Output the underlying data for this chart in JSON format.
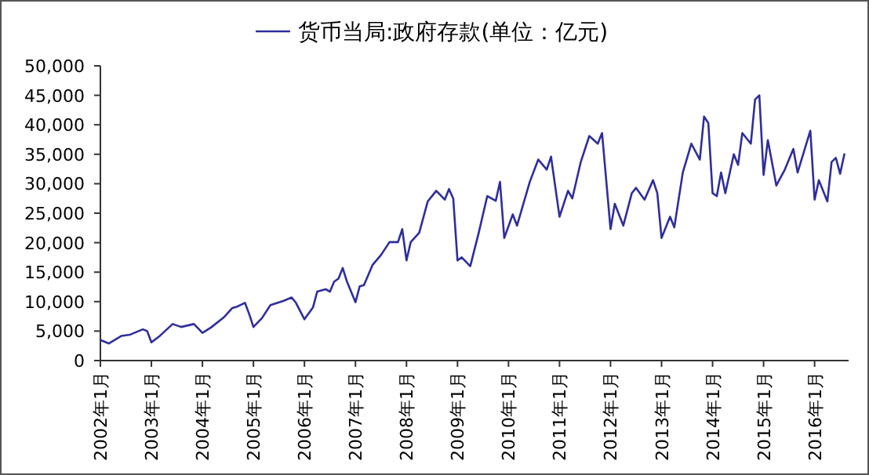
{
  "chart_data": {
    "type": "line",
    "x": [
      "2002-01",
      "2002-03",
      "2002-06",
      "2002-08",
      "2002-11",
      "2002-12",
      "2003-01",
      "2003-03",
      "2003-06",
      "2003-08",
      "2003-11",
      "2004-01",
      "2004-03",
      "2004-06",
      "2004-08",
      "2004-09",
      "2004-11",
      "2004-12",
      "2005-01",
      "2005-03",
      "2005-05",
      "2005-08",
      "2005-10",
      "2005-11",
      "2006-01",
      "2006-03",
      "2006-04",
      "2006-06",
      "2006-07",
      "2006-08",
      "2006-09",
      "2006-10",
      "2006-11",
      "2007-01",
      "2007-02",
      "2007-03",
      "2007-05",
      "2007-07",
      "2007-09",
      "2007-11",
      "2007-12",
      "2008-01",
      "2008-02",
      "2008-04",
      "2008-06",
      "2008-08",
      "2008-10",
      "2008-11",
      "2008-12",
      "2009-01",
      "2009-02",
      "2009-04",
      "2009-06",
      "2009-08",
      "2009-10",
      "2009-11",
      "2009-12",
      "2010-02",
      "2010-03",
      "2010-06",
      "2010-08",
      "2010-10",
      "2010-11",
      "2011-01",
      "2011-03",
      "2011-04",
      "2011-06",
      "2011-08",
      "2011-10",
      "2011-11",
      "2012-01",
      "2012-02",
      "2012-04",
      "2012-06",
      "2012-07",
      "2012-09",
      "2012-11",
      "2012-12",
      "2013-01",
      "2013-03",
      "2013-04",
      "2013-06",
      "2013-08",
      "2013-10",
      "2013-11",
      "2013-12",
      "2014-01",
      "2014-02",
      "2014-03",
      "2014-04",
      "2014-06",
      "2014-07",
      "2014-08",
      "2014-10",
      "2014-11",
      "2014-12",
      "2015-01",
      "2015-02",
      "2015-04",
      "2015-06",
      "2015-08",
      "2015-09",
      "2015-12",
      "2016-01",
      "2016-02",
      "2016-04",
      "2016-05",
      "2016-06",
      "2016-07",
      "2016-08"
    ],
    "series": [
      {
        "name": "货币当局:政府存款(单位：亿元)",
        "color": "#2e2e9c",
        "values": [
          3500,
          2900,
          4200,
          4400,
          5300,
          5000,
          3100,
          4200,
          6200,
          5700,
          6200,
          4700,
          5600,
          7300,
          8900,
          9100,
          9800,
          7900,
          5700,
          7200,
          9400,
          10100,
          10700,
          9800,
          7000,
          9000,
          11700,
          12100,
          11700,
          13400,
          13900,
          15700,
          13400,
          9900,
          12600,
          12800,
          16200,
          17900,
          20100,
          20100,
          22300,
          17000,
          20100,
          21700,
          27000,
          28800,
          27300,
          29100,
          27500,
          17000,
          17500,
          16000,
          21700,
          27900,
          27100,
          30300,
          20800,
          24800,
          22900,
          30300,
          34100,
          32400,
          34600,
          24400,
          28800,
          27500,
          33700,
          38100,
          36800,
          38600,
          22300,
          26600,
          22900,
          28400,
          29300,
          27300,
          30600,
          28400,
          20800,
          24400,
          22600,
          31900,
          36800,
          34100,
          41400,
          40300,
          28400,
          27900,
          31900,
          28400,
          35000,
          33200,
          38600,
          36800,
          44300,
          45000,
          31500,
          37400,
          29700,
          32400,
          35900,
          31900,
          39000,
          27300,
          30600,
          27000,
          33700,
          34400,
          31700,
          35000
        ]
      }
    ],
    "xlim": [
      "2002-01",
      "2016-09"
    ],
    "xticks": [
      {
        "value": "2002-01",
        "label": "2002年1月"
      },
      {
        "value": "2003-01",
        "label": "2003年1月"
      },
      {
        "value": "2004-01",
        "label": "2004年1月"
      },
      {
        "value": "2005-01",
        "label": "2005年1月"
      },
      {
        "value": "2006-01",
        "label": "2006年1月"
      },
      {
        "value": "2007-01",
        "label": "2007年1月"
      },
      {
        "value": "2008-01",
        "label": "2008年1月"
      },
      {
        "value": "2009-01",
        "label": "2009年1月"
      },
      {
        "value": "2010-01",
        "label": "2010年1月"
      },
      {
        "value": "2011-01",
        "label": "2011年1月"
      },
      {
        "value": "2012-01",
        "label": "2012年1月"
      },
      {
        "value": "2013-01",
        "label": "2013年1月"
      },
      {
        "value": "2014-01",
        "label": "2014年1月"
      },
      {
        "value": "2015-01",
        "label": "2015年1月"
      },
      {
        "value": "2016-01",
        "label": "2016年1月"
      }
    ],
    "ylim": [
      0,
      50000
    ],
    "yticks": [
      0,
      {
        "value": 5000,
        "label": "5,000"
      },
      {
        "value": 10000,
        "label": "10,000"
      },
      {
        "value": 15000,
        "label": "15,000"
      },
      {
        "value": 20000,
        "label": "20,000"
      },
      {
        "value": 25000,
        "label": "25,000"
      },
      {
        "value": 30000,
        "label": "30,000"
      },
      {
        "value": 35000,
        "label": "35,000"
      },
      {
        "value": 40000,
        "label": "40,000"
      },
      {
        "value": 45000,
        "label": "45,000"
      },
      {
        "value": 50000,
        "label": "50,000"
      }
    ],
    "legend": "top"
  }
}
